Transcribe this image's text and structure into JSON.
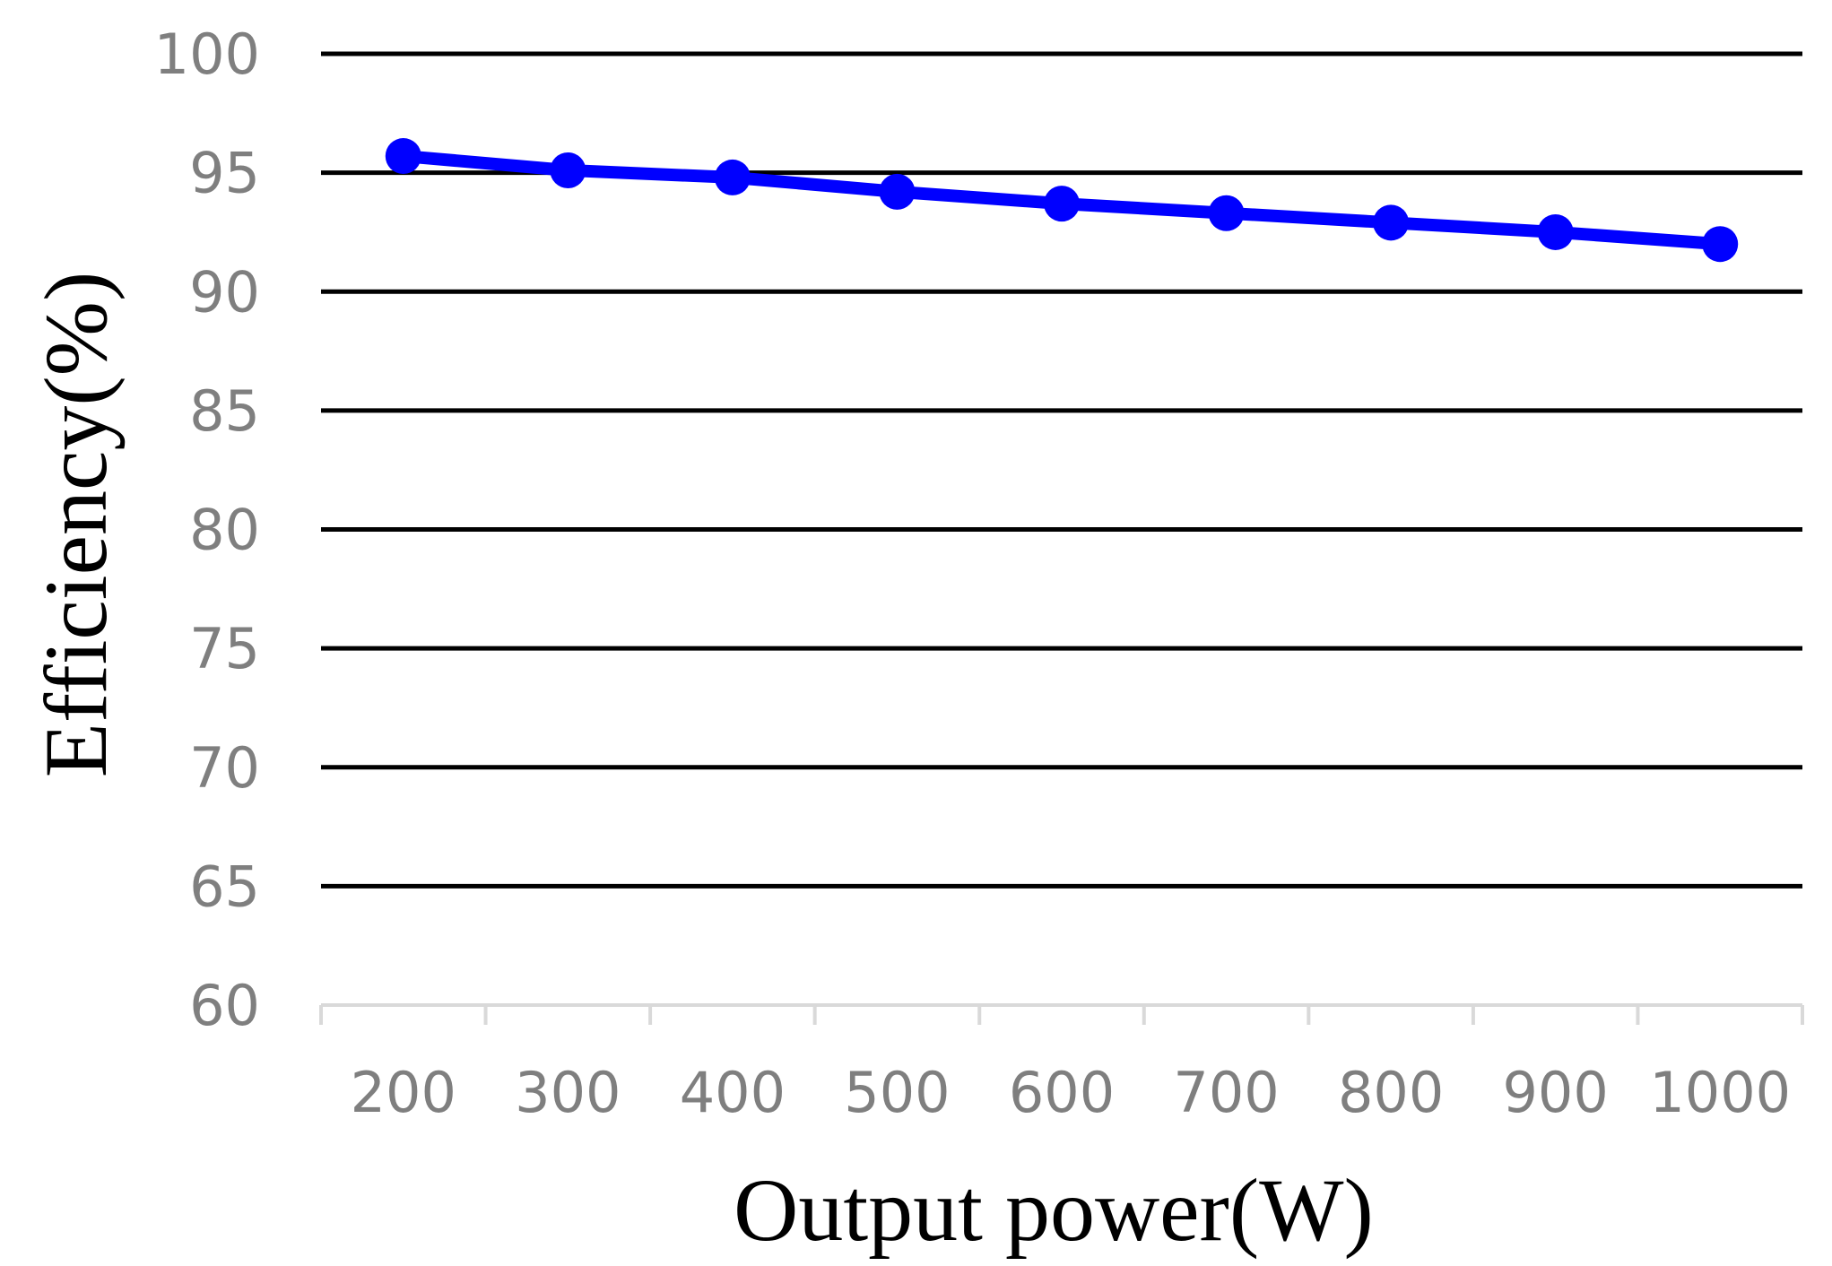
{
  "chart_data": {
    "type": "line",
    "title": "",
    "xlabel": "Output power(W)",
    "ylabel": "Efficiency(%)",
    "x": [
      200,
      300,
      400,
      500,
      600,
      700,
      800,
      900,
      1000
    ],
    "series": [
      {
        "values": [
          95.7,
          95.1,
          94.8,
          94.2,
          93.7,
          93.3,
          92.9,
          92.5,
          92.0
        ],
        "color": "#0000ff"
      }
    ],
    "ylim": [
      60,
      100
    ],
    "yticks": [
      60,
      65,
      70,
      75,
      80,
      85,
      90,
      95,
      100
    ],
    "xticks": [
      "200",
      "300",
      "400",
      "500",
      "600",
      "700",
      "800",
      "900",
      "1000"
    ],
    "grid": true,
    "gridline_color": "#000000",
    "axis_color": "#d9d9d9",
    "tick_label_color": "#7f7f7f",
    "legend": "none"
  }
}
